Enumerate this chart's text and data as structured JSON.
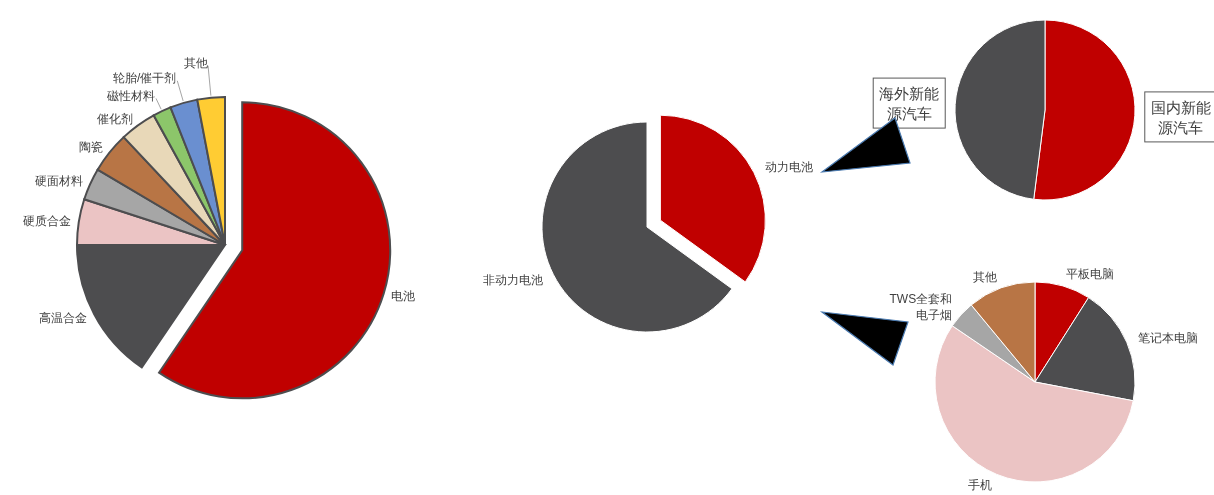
{
  "chart_data": [
    {
      "type": "pie",
      "categories": [
        "电池",
        "高温合金",
        "硬质合金",
        "硬面材料",
        "陶瓷",
        "催化剂",
        "磁性材料",
        "轮胎/催干剂",
        "其他"
      ],
      "values": [
        59.5,
        15.5,
        5,
        3.5,
        4.5,
        4,
        2,
        3,
        3
      ],
      "colors": [
        "#c00000",
        "#4d4d4f",
        "#ebc4c4",
        "#a6a6a6",
        "#b87545",
        "#e8d8b8",
        "#8cc66a",
        "#6a8fd0",
        "#ffcc33"
      ]
    },
    {
      "type": "pie",
      "categories": [
        "动力电池",
        "非动力电池"
      ],
      "values": [
        35,
        65
      ],
      "colors": [
        "#c00000",
        "#4d4d4f"
      ]
    },
    {
      "type": "pie",
      "categories": [
        "国内新能源汽车",
        "海外新能源汽车"
      ],
      "values": [
        52,
        48
      ],
      "colors": [
        "#c00000",
        "#4d4d4f"
      ]
    },
    {
      "type": "pie",
      "categories": [
        "平板电脑",
        "笔记本电脑",
        "手机",
        "TWS全套和电子烟",
        "其他"
      ],
      "values": [
        9,
        19,
        56.5,
        4.5,
        11
      ],
      "colors": [
        "#c00000",
        "#4d4d4f",
        "#ebc4c4",
        "#a6a6a6",
        "#b87545"
      ]
    }
  ]
}
